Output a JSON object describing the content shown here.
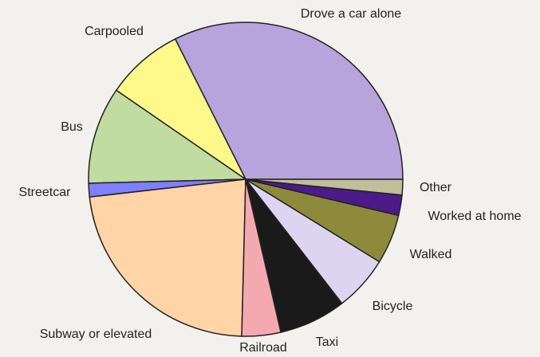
{
  "chart_data": {
    "type": "pie",
    "categories": [
      "Drove a car alone",
      "Carpooled",
      "Bus",
      "Streetcar",
      "Subway or elevated",
      "Railroad",
      "Taxi",
      "Bicycle",
      "Walked",
      "Worked at home",
      "Other"
    ],
    "values": [
      32.4,
      8,
      10,
      1.4,
      22.8,
      4,
      6.9,
      5.7,
      5.1,
      2.1,
      1.6
    ],
    "colors": [
      "#b9a3dc",
      "#fff98c",
      "#c2dba0",
      "#7f7fff",
      "#ffd4a6",
      "#f4a9b0",
      "#1a1a1a",
      "#ddd4f2",
      "#8d8a3c",
      "#4b1b8a",
      "#c1bf9a"
    ]
  }
}
